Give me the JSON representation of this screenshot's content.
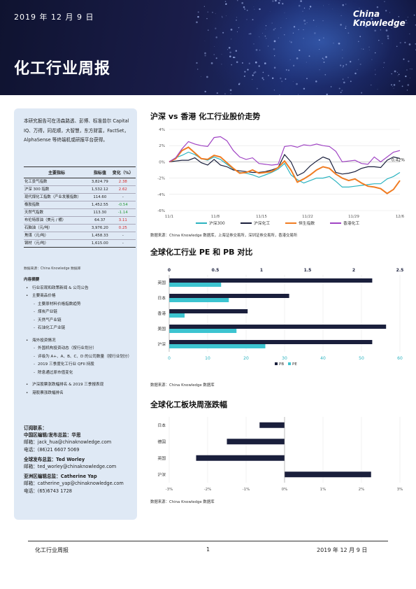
{
  "header": {
    "date": "2019 年 12 月 9 日",
    "title": "化工行业周报",
    "logo_line1": "China",
    "logo_line2": "Knowledge"
  },
  "sidebar": {
    "intro": "本研究报告可在汤森路透、彭博、标准普尔 Capital IQ、万得，同花顺，大智慧，东方财富，FactSet，AlphaSense 等终端机或研报平台获得。",
    "table_headers": [
      "主要指标",
      "指标值",
      "变化（%）"
    ],
    "table_rows": [
      {
        "name": "化工景气指数",
        "value": "3,824.79",
        "change": "2.38",
        "dir": "pos"
      },
      {
        "name": "沪深 300 指数",
        "value": "1,532.12",
        "change": "2.62",
        "dir": "pos"
      },
      {
        "name": "现代煤化工指数（产业发展指数）",
        "value": "114.60",
        "change": "-",
        "dir": "none"
      },
      {
        "name": "橡胶指数",
        "value": "1,452.55",
        "change": "-0.54",
        "dir": "neg"
      },
      {
        "name": "天然气指数",
        "value": "113.30",
        "change": "-1.14",
        "dir": "neg"
      },
      {
        "name": "布伦特原油（美元 / 桶）",
        "value": "64.37",
        "change": "3.11",
        "dir": "pos"
      },
      {
        "name": "石脑油（元/吨）",
        "value": "3,976.20",
        "change": "0.25",
        "dir": "pos"
      },
      {
        "name": "焦煤（元/吨）",
        "value": "1,458.33",
        "change": "-",
        "dir": "none"
      },
      {
        "name": "钢材（元/吨）",
        "value": "1,615.00",
        "change": "-",
        "dir": "none"
      }
    ],
    "table_source": "数据来源：China Knowledge 数据库",
    "toc_heading": "内容摘要",
    "toc_b1": "行业宏观和政策新闻 & 公司公告",
    "toc_b2": "主要商品价格",
    "toc_s1": "主要原材料价格指数趋势",
    "toc_s2": "煤炭产业链",
    "toc_s3": "天然气产业链",
    "toc_s4": "石油化工产业链",
    "toc_b3": "海外投资情况",
    "toc_s5": "外国机构投资动态（按行业划分）",
    "toc_s6": "评级为 A+、A、B、C、D 的公司数量（按行业划分）",
    "toc_s7": "2019 三季度化工行业 QFII 持股",
    "toc_s8": "除息通过原市值变化",
    "toc_b4": "沪深股票涨跌幅排名 & 2019 三季报表现",
    "toc_b5": "港股票涨跌幅排名",
    "contact_heading": "订阅联系：",
    "c1_title": "中国区编辑/发布总监：华思",
    "c1_email": "邮箱：jack_hua@chinaknowledge.com",
    "c1_phone": "电话：(86)21 6607 5069",
    "c2_title": "全球发布总监：Ted Worley",
    "c2_email": "邮箱：ted_worley@chinaknowledge.com",
    "c3_title": "亚洲区编辑总监：Catherine Yap",
    "c3_email": "邮箱：catherine_yap@chinaknowledge.com",
    "c3_phone": "电话：(65)6743 1728"
  },
  "chart1_title": "沪深 vs 香港 化工行业股价走势",
  "chart1_source": "数据来源：China Knowledge 数据库，上海证券交易所，深圳证券交易所，香港交易所",
  "chart2_title": "全球化工行业 PE 和 PB 对比",
  "chart2_source": "数据来源：China Knowledge 数据库",
  "chart3_title": "全球化工板块周涨跌幅",
  "chart3_source": "数据来源：China Knowledge 数据库",
  "footer": {
    "left": "化工行业周报",
    "page": "1",
    "right": "2019 年 12 月 9 日"
  },
  "chart_data": [
    {
      "type": "line",
      "title": "",
      "x_ticks": [
        "11/1",
        "11/8",
        "11/15",
        "11/22",
        "11/29",
        "12/6"
      ],
      "y_ticks": [
        "4%",
        "2%",
        "0%",
        "-2%",
        "-4%",
        "-6%"
      ],
      "ylim": [
        -6,
        4
      ],
      "annotation": "0.42%",
      "legend_position": "bottom",
      "series": [
        {
          "name": "沪深300",
          "color": "#2bb3c0",
          "values": [
            0,
            0.5,
            0.8,
            1.2,
            0.9,
            0.4,
            0.2,
            0.6,
            0.3,
            -0.3,
            -0.9,
            -1.3,
            -1.4,
            -1.6,
            -1.9,
            -1.6,
            -1.3,
            -0.9,
            -0.2,
            -1.6,
            -2.2,
            -2.6,
            -2.3,
            -2.0,
            -2.0,
            -1.8,
            -2.4,
            -3.1,
            -3.1,
            -3.0,
            -2.9,
            -2.8,
            -2.7,
            -2.7,
            -2.1,
            -1.8,
            -1.3
          ]
        },
        {
          "name": "沪深化工",
          "color": "#1a1f3c",
          "values": [
            0,
            0.1,
            0.2,
            0.2,
            0.5,
            -0.1,
            -0.4,
            0.3,
            -0.4,
            -0.6,
            -1.0,
            -1.1,
            -1.2,
            -1.3,
            -1.3,
            -1.2,
            -1.0,
            -0.7,
            0.9,
            0.0,
            -1.7,
            -1.3,
            -0.5,
            0.1,
            0.6,
            0.3,
            -1.3,
            -1.5,
            -1.4,
            -1.2,
            -0.8,
            -0.6,
            -0.6,
            -0.7,
            0.2,
            0.6,
            0.42
          ]
        },
        {
          "name": "恒生指数",
          "color": "#f07c22",
          "values": [
            0,
            0.4,
            1.4,
            1.8,
            1.1,
            0.4,
            0.3,
            0.8,
            0.6,
            -0.1,
            -0.8,
            -1.4,
            -1.3,
            -1.0,
            -1.4,
            -1.3,
            -1.2,
            -0.7,
            0.1,
            -1.0,
            -2.5,
            -2.1,
            -1.6,
            -1.0,
            -0.6,
            -0.8,
            -1.5,
            -2.0,
            -2.3,
            -2.1,
            -2.6,
            -3.0,
            -3.1,
            -3.3,
            -3.9,
            -3.4,
            -2.3
          ]
        },
        {
          "name": "香港化工",
          "color": "#a044c4",
          "values": [
            0,
            0.5,
            1.6,
            2.5,
            2.2,
            2.0,
            1.9,
            3.0,
            3.1,
            2.6,
            1.4,
            0.6,
            0.3,
            0.5,
            -0.2,
            -0.3,
            -0.4,
            -0.3,
            1.9,
            2.0,
            1.8,
            2.1,
            2.0,
            2.2,
            2.0,
            1.9,
            1.3,
            0.0,
            0.1,
            0.2,
            -0.2,
            -0.3,
            0.6,
            0.0,
            0.6,
            1.2,
            1.4
          ]
        }
      ]
    },
    {
      "type": "bar",
      "title": "",
      "orientation": "horizontal",
      "categories": [
        "英国",
        "日本",
        "香港",
        "美国",
        "沪深"
      ],
      "pb_ticks": [
        0,
        0.5,
        1,
        1.5,
        2,
        2.5
      ],
      "pe_ticks": [
        0,
        10,
        20,
        30,
        40,
        50,
        60
      ],
      "series": [
        {
          "name": "PB",
          "color": "#1a1f3c",
          "axis": "top",
          "values": [
            2.2,
            1.3,
            0.85,
            2.35,
            2.2
          ]
        },
        {
          "name": "PE",
          "color": "#3cc4d0",
          "axis": "bottom",
          "values": [
            13.5,
            15.5,
            4.0,
            17.5,
            25.0
          ]
        }
      ],
      "legend_position": "bottom"
    },
    {
      "type": "bar",
      "title": "",
      "orientation": "horizontal",
      "categories": [
        "日本",
        "德国",
        "英国",
        "沪深"
      ],
      "values": [
        -0.65,
        -1.5,
        -2.3,
        2.25
      ],
      "color": "#1a1f3c",
      "x_ticks": [
        "-3%",
        "-2%",
        "-1%",
        "0%",
        "1%",
        "2%",
        "3%"
      ],
      "xlim": [
        -3,
        3
      ]
    }
  ]
}
